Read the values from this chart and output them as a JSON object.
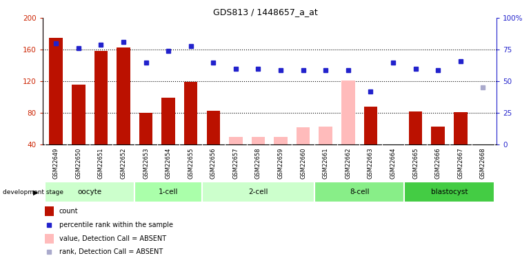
{
  "title": "GDS813 / 1448657_a_at",
  "samples": [
    "GSM22649",
    "GSM22650",
    "GSM22651",
    "GSM22652",
    "GSM22653",
    "GSM22654",
    "GSM22655",
    "GSM22656",
    "GSM22657",
    "GSM22658",
    "GSM22659",
    "GSM22660",
    "GSM22661",
    "GSM22662",
    "GSM22663",
    "GSM22664",
    "GSM22665",
    "GSM22666",
    "GSM22667",
    "GSM22668"
  ],
  "count_values": [
    175,
    116,
    158,
    163,
    80,
    99,
    119,
    83,
    50,
    50,
    50,
    62,
    63,
    121,
    88,
    40,
    82,
    63,
    81,
    40
  ],
  "absent_mask": [
    false,
    false,
    false,
    false,
    false,
    false,
    false,
    false,
    true,
    true,
    true,
    true,
    true,
    true,
    false,
    false,
    false,
    false,
    false,
    true
  ],
  "rank_values": [
    80,
    76,
    79,
    81,
    65,
    74,
    78,
    65,
    60,
    60,
    59,
    59,
    59,
    59,
    42,
    65,
    60,
    59,
    66,
    45
  ],
  "rank_absent_mask": [
    false,
    false,
    false,
    false,
    false,
    false,
    false,
    false,
    false,
    false,
    false,
    false,
    false,
    false,
    false,
    false,
    false,
    false,
    false,
    true
  ],
  "groups": [
    {
      "name": "oocyte",
      "start": 0,
      "end": 4,
      "color": "#ccffcc"
    },
    {
      "name": "1-cell",
      "start": 4,
      "end": 7,
      "color": "#aaffaa"
    },
    {
      "name": "2-cell",
      "start": 7,
      "end": 12,
      "color": "#ccffcc"
    },
    {
      "name": "8-cell",
      "start": 12,
      "end": 16,
      "color": "#88ee88"
    },
    {
      "name": "blastocyst",
      "start": 16,
      "end": 20,
      "color": "#44cc44"
    }
  ],
  "ylim_left": [
    40,
    200
  ],
  "ylim_right": [
    0,
    100
  ],
  "yticks_left": [
    40,
    80,
    120,
    160,
    200
  ],
  "yticks_right": [
    0,
    25,
    50,
    75,
    100
  ],
  "bar_color_present": "#bb1100",
  "bar_color_absent": "#ffbbbb",
  "rank_color_present": "#2222cc",
  "rank_color_absent": "#aaaacc",
  "background_color": "#ffffff",
  "sample_bg_color": "#dddddd",
  "xlabel_color": "#cc2200",
  "right_axis_color": "#2222cc",
  "legend_items": [
    {
      "color": "#bb1100",
      "style": "rect",
      "label": "count"
    },
    {
      "color": "#2222cc",
      "style": "square",
      "label": "percentile rank within the sample"
    },
    {
      "color": "#ffbbbb",
      "style": "rect",
      "label": "value, Detection Call = ABSENT"
    },
    {
      "color": "#aaaacc",
      "style": "square",
      "label": "rank, Detection Call = ABSENT"
    }
  ]
}
